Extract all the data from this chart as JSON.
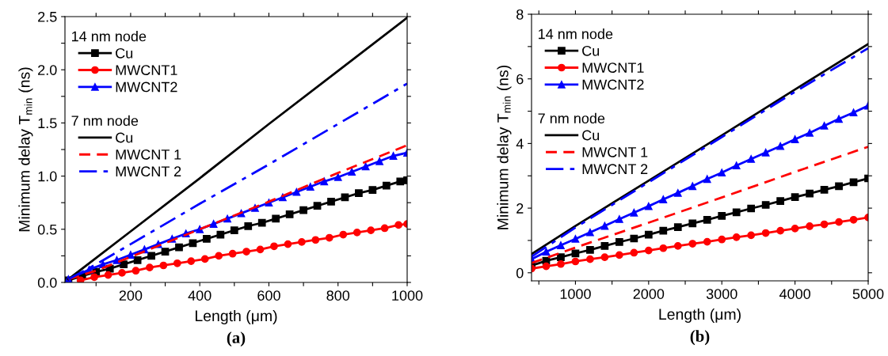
{
  "chart_data": [
    {
      "type": "line",
      "title": "(a)",
      "xlabel": "Length (μm)",
      "ylabel": "Minimum delay T$_{min}$ (ns)",
      "annotations": [
        "14 nm node",
        "7 nm node"
      ],
      "xlim": [
        10,
        1000
      ],
      "xticks": [
        {
          "value": 100,
          "label": null
        },
        200,
        {
          "value": 300,
          "label": null
        },
        400,
        {
          "value": 500,
          "label": null
        },
        600,
        {
          "value": 700,
          "label": null
        },
        800,
        {
          "value": 900,
          "label": null
        },
        1000
      ],
      "ylim": [
        0,
        2.5
      ],
      "yticks": [
        "0.0",
        {
          "value": 0.25,
          "label": null
        },
        {
          "value": 0.5,
          "label": "0.5"
        },
        {
          "value": 0.75,
          "label": null
        },
        {
          "value": 1.0,
          "label": "1.0"
        },
        {
          "value": 1.25,
          "label": null
        },
        {
          "value": 1.5,
          "label": "1.5"
        },
        {
          "value": 1.75,
          "label": null
        },
        {
          "value": 2.0,
          "label": "2.0"
        },
        {
          "value": 2.25,
          "label": null
        },
        {
          "value": 2.5,
          "label": "2.5"
        }
      ],
      "grid": false,
      "legend": "top left",
      "series": [
        {
          "name": "Cu",
          "color": "#000000",
          "marker": "square",
          "line_style": "solid",
          "x": [
            20,
            60,
            100,
            140,
            180,
            220,
            260,
            300,
            340,
            380,
            420,
            460,
            500,
            540,
            580,
            620,
            660,
            700,
            740,
            780,
            820,
            860,
            900,
            940,
            980,
            1000
          ],
          "values": [
            0.02,
            0.06,
            0.1,
            0.13,
            0.17,
            0.21,
            0.25,
            0.29,
            0.33,
            0.37,
            0.41,
            0.45,
            0.49,
            0.53,
            0.56,
            0.6,
            0.64,
            0.68,
            0.72,
            0.76,
            0.8,
            0.84,
            0.87,
            0.91,
            0.95,
            0.96
          ]
        },
        {
          "name": "MWCNT1",
          "color": "#ff0000",
          "marker": "circle",
          "line_style": "solid",
          "x": [
            55,
            95,
            135,
            175,
            215,
            255,
            295,
            335,
            375,
            415,
            455,
            495,
            535,
            575,
            615,
            655,
            695,
            735,
            775,
            815,
            855,
            895,
            935,
            975,
            1000
          ],
          "values": [
            0.02,
            0.05,
            0.07,
            0.09,
            0.11,
            0.14,
            0.16,
            0.18,
            0.2,
            0.22,
            0.25,
            0.27,
            0.29,
            0.31,
            0.34,
            0.36,
            0.38,
            0.4,
            0.42,
            0.45,
            0.47,
            0.49,
            0.51,
            0.54,
            0.55
          ]
        },
        {
          "name": "MWCNT2",
          "color": "#0000ff",
          "marker": "triangle",
          "line_style": "solid",
          "x": [
            20,
            80,
            120,
            160,
            200,
            240,
            280,
            320,
            360,
            400,
            440,
            480,
            520,
            560,
            600,
            640,
            680,
            720,
            760,
            800,
            840,
            880,
            920,
            960,
            1000
          ],
          "values": [
            0.03,
            0.12,
            0.17,
            0.21,
            0.26,
            0.31,
            0.36,
            0.41,
            0.46,
            0.5,
            0.55,
            0.6,
            0.65,
            0.7,
            0.75,
            0.8,
            0.85,
            0.9,
            0.95,
            0.99,
            1.04,
            1.09,
            1.14,
            1.19,
            1.22
          ]
        },
        {
          "name": "Cu",
          "color": "#000000",
          "marker": "none",
          "line_style": "solid",
          "x": [
            20,
            200,
            400,
            600,
            800,
            1000
          ],
          "values": [
            0.03,
            0.48,
            0.98,
            1.49,
            1.99,
            2.49
          ]
        },
        {
          "name": "MWCNT 1",
          "color": "#ff0000",
          "marker": "none",
          "line_style": "dashed",
          "x": [
            20,
            100,
            200,
            400,
            600,
            800,
            1000
          ],
          "values": [
            0.03,
            0.11,
            0.24,
            0.5,
            0.76,
            1.03,
            1.29
          ]
        },
        {
          "name": "MWCNT 2",
          "color": "#0000ff",
          "marker": "none",
          "line_style": "dashdot",
          "x": [
            20,
            100,
            200,
            400,
            600,
            800,
            1000
          ],
          "values": [
            0.03,
            0.17,
            0.36,
            0.74,
            1.11,
            1.49,
            1.87
          ]
        }
      ]
    },
    {
      "type": "line",
      "title": "(b)",
      "xlabel": "Length (μm)",
      "ylabel": "Minimum delay T$_{min}$ (ns)",
      "annotations": [
        "14 nm node",
        "7 nm node"
      ],
      "xlim": [
        400,
        5000
      ],
      "xticks": [
        {
          "value": 500,
          "label": null
        },
        1000,
        {
          "value": 1500,
          "label": null
        },
        2000,
        {
          "value": 2500,
          "label": null
        },
        3000,
        {
          "value": 3500,
          "label": null
        },
        4000,
        {
          "value": 4500,
          "label": null
        },
        5000
      ],
      "ylim": [
        -0.25,
        8
      ],
      "yticks": [
        0,
        {
          "value": 1,
          "label": null
        },
        2,
        {
          "value": 3,
          "label": null
        },
        4,
        {
          "value": 5,
          "label": null
        },
        6,
        {
          "value": 7,
          "label": null
        },
        8
      ],
      "grid": false,
      "legend": "top left",
      "series": [
        {
          "name": "Cu",
          "color": "#000000",
          "marker": "square",
          "line_style": "solid",
          "x": [
            400,
            600,
            800,
            1000,
            1200,
            1400,
            1600,
            1800,
            2000,
            2200,
            2400,
            2600,
            2800,
            3000,
            3200,
            3400,
            3600,
            3800,
            4000,
            4200,
            4400,
            4600,
            4800,
            5000
          ],
          "values": [
            0.22,
            0.37,
            0.48,
            0.6,
            0.71,
            0.83,
            0.95,
            1.06,
            1.18,
            1.3,
            1.41,
            1.53,
            1.64,
            1.76,
            1.87,
            1.99,
            2.1,
            2.22,
            2.34,
            2.45,
            2.57,
            2.68,
            2.8,
            2.92
          ]
        },
        {
          "name": "MWCNT1",
          "color": "#ff0000",
          "marker": "circle",
          "line_style": "solid",
          "x": [
            400,
            600,
            800,
            1000,
            1200,
            1400,
            1600,
            1800,
            2000,
            2200,
            2400,
            2600,
            2800,
            3000,
            3200,
            3400,
            3600,
            3800,
            4000,
            4200,
            4400,
            4600,
            4800,
            5000
          ],
          "values": [
            0.13,
            0.2,
            0.27,
            0.35,
            0.42,
            0.48,
            0.55,
            0.62,
            0.69,
            0.76,
            0.83,
            0.9,
            0.96,
            1.03,
            1.1,
            1.16,
            1.23,
            1.3,
            1.37,
            1.44,
            1.5,
            1.57,
            1.64,
            1.71
          ]
        },
        {
          "name": "MWCNT2",
          "color": "#0000ff",
          "marker": "triangle",
          "line_style": "solid",
          "x": [
            400,
            600,
            800,
            1000,
            1200,
            1400,
            1600,
            1800,
            2000,
            2200,
            2400,
            2600,
            2800,
            3000,
            3200,
            3400,
            3600,
            3800,
            4000,
            4200,
            4400,
            4600,
            4800,
            5000
          ],
          "values": [
            0.42,
            0.65,
            0.85,
            1.05,
            1.25,
            1.45,
            1.66,
            1.86,
            2.06,
            2.27,
            2.47,
            2.68,
            2.9,
            3.1,
            3.32,
            3.52,
            3.72,
            3.92,
            4.13,
            4.33,
            4.55,
            4.76,
            4.96,
            5.17
          ]
        },
        {
          "name": "Cu",
          "color": "#000000",
          "marker": "none",
          "line_style": "solid",
          "x": [
            400,
            1000,
            2000,
            3000,
            4000,
            5000
          ],
          "values": [
            0.58,
            1.45,
            2.85,
            4.25,
            5.67,
            7.08
          ]
        },
        {
          "name": "MWCNT 1",
          "color": "#ff0000",
          "marker": "none",
          "line_style": "dashed",
          "x": [
            400,
            1000,
            2000,
            3000,
            4000,
            5000
          ],
          "values": [
            0.3,
            0.78,
            1.55,
            2.33,
            3.12,
            3.9
          ]
        },
        {
          "name": "MWCNT 2",
          "color": "#0000ff",
          "marker": "none",
          "line_style": "dashdot",
          "x": [
            400,
            1000,
            2000,
            3000,
            4000,
            5000
          ],
          "values": [
            0.5,
            1.4,
            2.8,
            4.2,
            5.6,
            6.95
          ]
        }
      ]
    }
  ]
}
